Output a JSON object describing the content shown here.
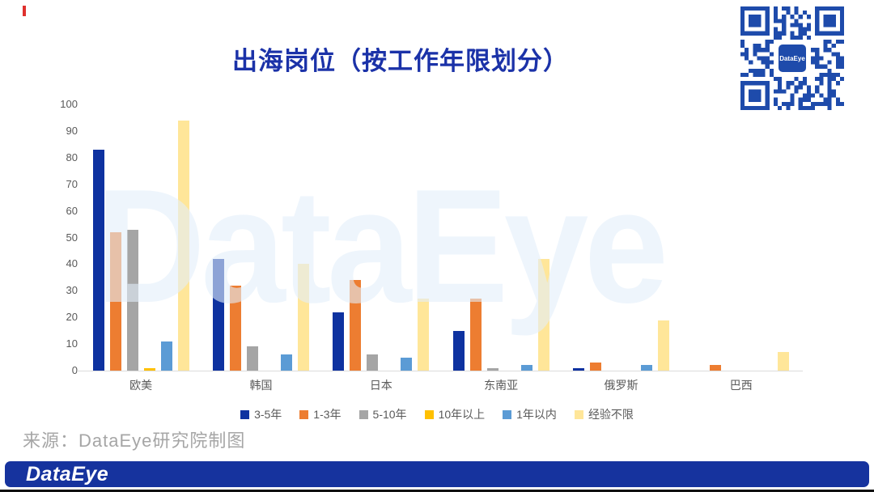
{
  "title": {
    "text": "出海岗位（按工作年限划分）",
    "color": "#1B32A8"
  },
  "watermark": {
    "text": "DataEye",
    "color": "rgba(227,239,250,0.6)"
  },
  "decorations": {
    "top_left_mark_color": "#DF312E"
  },
  "qr": {
    "center_label": "DataEye",
    "module_color": "#1E4BAB"
  },
  "source": {
    "text": "来源：DataEye研究院制图"
  },
  "footer": {
    "logo_text": "DataEye",
    "bar_color": "#16339E"
  },
  "chart_data": {
    "type": "bar",
    "title": "出海岗位（按工作年限划分）",
    "categories": [
      "欧美",
      "韩国",
      "日本",
      "东南亚",
      "俄罗斯",
      "巴西"
    ],
    "series": [
      {
        "name": "3-5年",
        "color": "#0E32A0",
        "values": [
          83,
          42,
          22,
          15,
          1,
          0
        ]
      },
      {
        "name": "1-3年",
        "color": "#ED7D31",
        "values": [
          52,
          32,
          34,
          27,
          3,
          2
        ]
      },
      {
        "name": "5-10年",
        "color": "#A5A5A5",
        "values": [
          53,
          9,
          6,
          1,
          0,
          0
        ]
      },
      {
        "name": "10年以上",
        "color": "#FFC000",
        "values": [
          1,
          0,
          0,
          0,
          0,
          0
        ]
      },
      {
        "name": "1年以内",
        "color": "#5B9BD5",
        "values": [
          11,
          6,
          5,
          2,
          2,
          0
        ]
      },
      {
        "name": "经验不限",
        "color": "#FFE699",
        "values": [
          94,
          40,
          27,
          42,
          19,
          7
        ]
      }
    ],
    "ylim": [
      0,
      100
    ],
    "yticks": [
      0,
      10,
      20,
      30,
      40,
      50,
      60,
      70,
      80,
      90,
      100
    ],
    "grid": false,
    "legend_position": "bottom",
    "axis_line_color": "#DCDCDC",
    "label_color": "#595959"
  }
}
